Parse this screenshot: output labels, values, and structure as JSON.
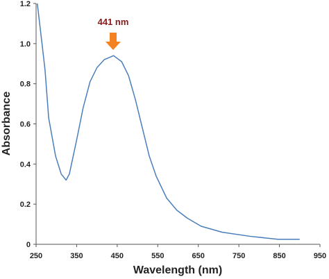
{
  "chart_data": {
    "type": "line",
    "x_label": "Wavelength (nm)",
    "y_label": "Absorbance",
    "annotation": "441 nm",
    "x": [
      253,
      264,
      272,
      281,
      298,
      312,
      324,
      332,
      349,
      366,
      383,
      400,
      418,
      441,
      461,
      478,
      495,
      512,
      529,
      546,
      572,
      597,
      623,
      657,
      709,
      777,
      846,
      900
    ],
    "series": [
      {
        "name": "Absorbance",
        "color": "#4a7ebb",
        "values": [
          1.2,
          1.01,
          0.87,
          0.63,
          0.44,
          0.35,
          0.32,
          0.35,
          0.51,
          0.68,
          0.81,
          0.88,
          0.92,
          0.94,
          0.91,
          0.84,
          0.72,
          0.58,
          0.44,
          0.34,
          0.23,
          0.17,
          0.13,
          0.09,
          0.06,
          0.04,
          0.025,
          0.025
        ]
      }
    ],
    "xlim": [
      250,
      950
    ],
    "xticks": [
      250,
      350,
      450,
      550,
      650,
      750,
      850,
      950
    ],
    "ylim": [
      0,
      1.2
    ],
    "yticks": [
      0,
      0.2,
      0.4,
      0.6,
      0.8,
      {
        "value": 1,
        "label": "1.0"
      },
      1.2
    ]
  }
}
